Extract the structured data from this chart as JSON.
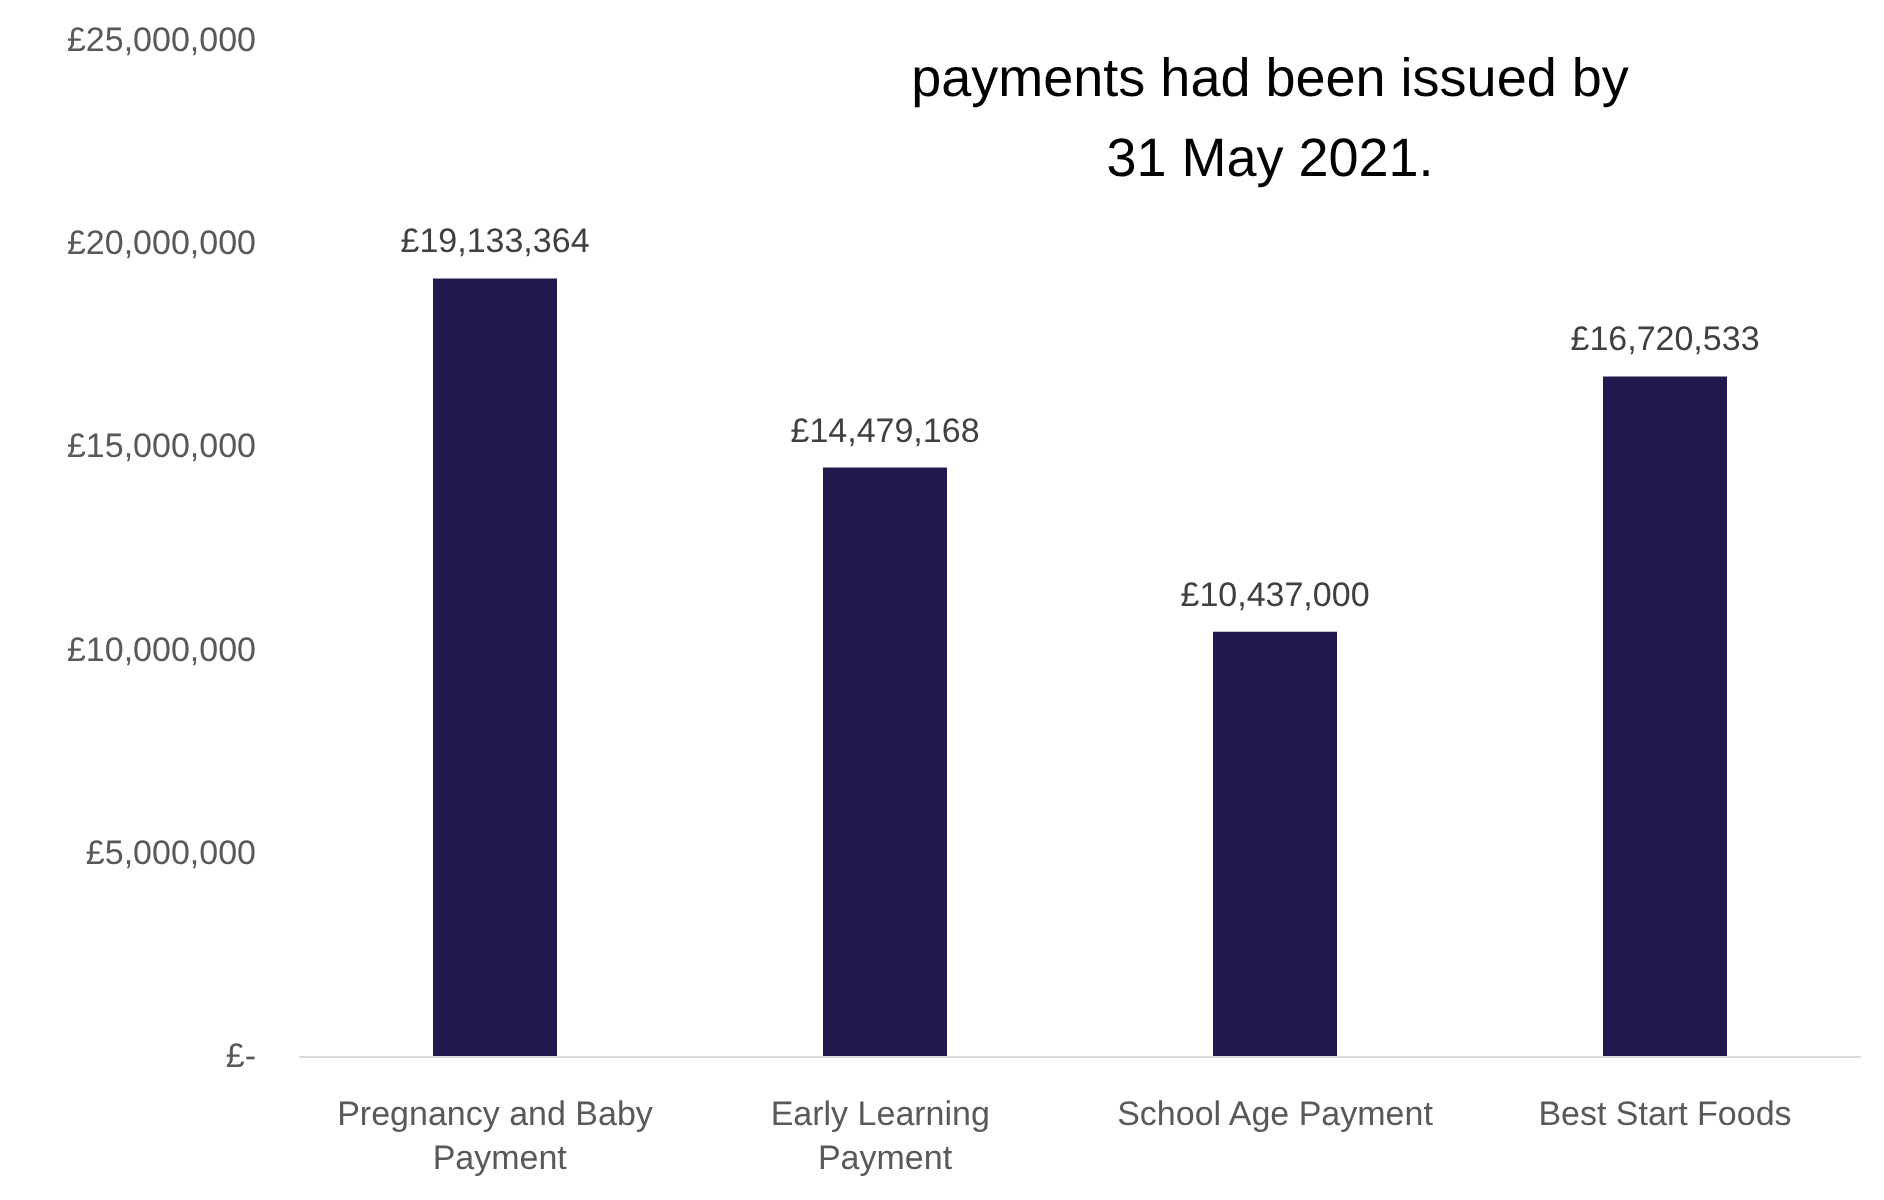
{
  "chart_data": {
    "type": "bar",
    "title": "payments had been issued by\n31 May 2021.",
    "categories": [
      "Pregnancy and Baby Payment",
      "Early Learning Payment",
      "School Age Payment",
      "Best Start Foods"
    ],
    "values": [
      19133364,
      14479168,
      10437000,
      16720533
    ],
    "value_labels": [
      "£19,133,364",
      "£14,479,168",
      "£10,437,000",
      "£16,720,533"
    ],
    "color": "#201a4f",
    "ylim": [
      0,
      25000000
    ],
    "yticks": [
      {
        "value": 0,
        "label": "£-"
      },
      {
        "value": 5000000,
        "label": "£5,000,000"
      },
      {
        "value": 10000000,
        "label": "£10,000,000"
      },
      {
        "value": 15000000,
        "label": "£15,000,000"
      },
      {
        "value": 20000000,
        "label": "£20,000,000"
      },
      {
        "value": 25000000,
        "label": "£25,000,000"
      }
    ],
    "grid": false
  }
}
